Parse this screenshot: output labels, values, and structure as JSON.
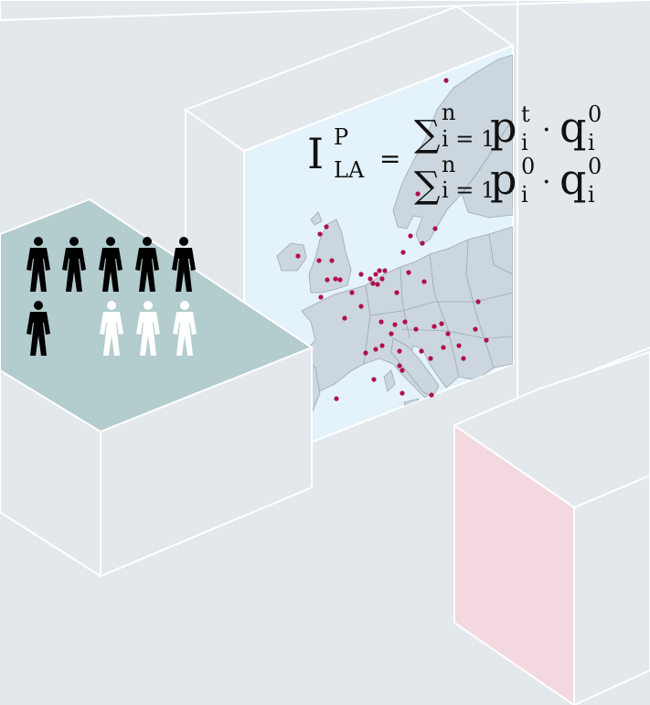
{
  "formula": {
    "lhs_symbol": "I",
    "lhs_superscript": "P",
    "lhs_subscript": "LA",
    "equals": "=",
    "numerator": {
      "sum": "∑",
      "upper": "n",
      "lower": "i = 1",
      "p": "p",
      "p_sup": "t",
      "p_sub": "i",
      "dot": "·",
      "q": "q",
      "q_sup": "0",
      "q_sub": "i"
    },
    "denominator": {
      "sum": "∑",
      "upper": "n",
      "lower": "i = 1",
      "p": "p",
      "p_sup": "0",
      "p_sub": "i",
      "dot": "·",
      "q": "q",
      "q_sup": "0",
      "q_sub": "i"
    }
  },
  "people": {
    "filled_count": 6,
    "hollow_count": 3,
    "filled_color": "#000000",
    "hollow_color": "#ffffff"
  },
  "colors": {
    "background": "#e3e8ec",
    "box_edge": "#ffffff",
    "teal_panel": "#b3ccce",
    "map_sea": "#e4f2fb",
    "map_land": "#ccd6de",
    "map_border": "#9aa8b4",
    "city_dot": "#b0104c",
    "pink_panel": "#f4d8df"
  },
  "map": {
    "icon": "europe-map-icon",
    "cities_count": 60
  }
}
